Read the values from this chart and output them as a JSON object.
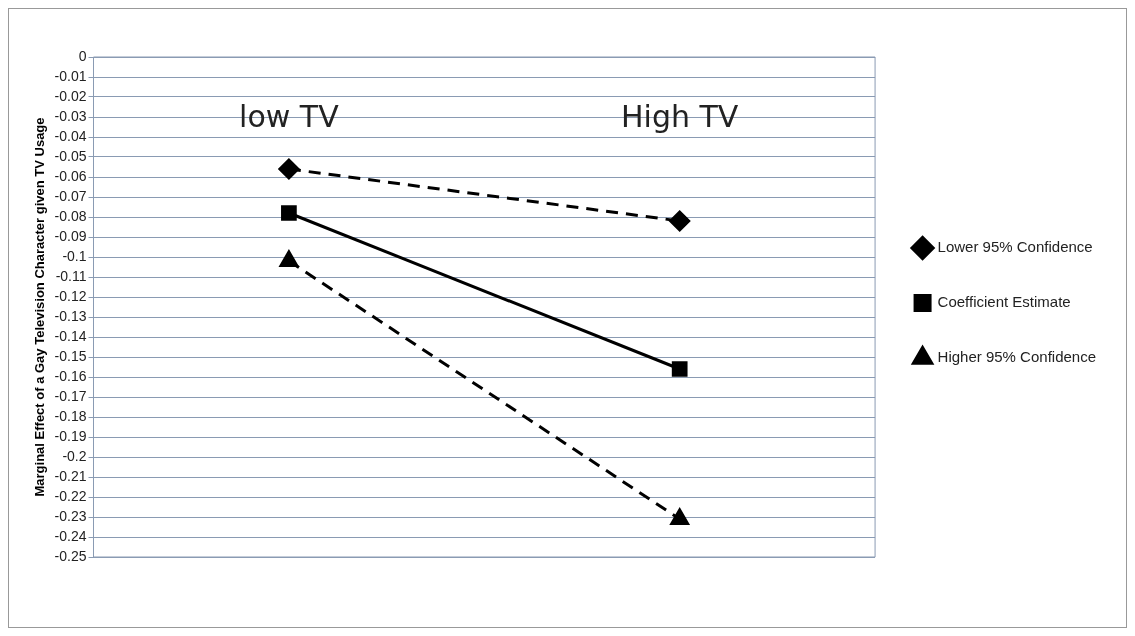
{
  "chart_data": {
    "type": "line",
    "ylabel": "Marginal Effect of a Gay Television Character given TV Usage",
    "categories": [
      "low TV",
      "High TV"
    ],
    "series": [
      {
        "name": "Lower 95% Confidence",
        "color": "#000000",
        "values": [
          -0.056,
          -0.082
        ],
        "marker": "diamond",
        "line_style": "dashed"
      },
      {
        "name": "Coefficient Estimate",
        "color": "#000000",
        "values": [
          -0.078,
          -0.156
        ],
        "marker": "square",
        "line_style": "solid"
      },
      {
        "name": "Higher 95% Confidence",
        "color": "#000000",
        "values": [
          -0.102,
          -0.231
        ],
        "marker": "triangle",
        "line_style": "dashed"
      }
    ],
    "ylim": [
      -0.25,
      0
    ],
    "yticks": [
      0,
      -0.01,
      -0.02,
      -0.03,
      -0.04,
      -0.05,
      -0.06,
      -0.07,
      -0.08,
      -0.09,
      -0.1,
      -0.11,
      -0.12,
      -0.13,
      -0.14,
      -0.15,
      -0.16,
      -0.17,
      -0.18,
      -0.19,
      -0.2,
      -0.21,
      -0.22,
      -0.23,
      -0.24,
      -0.25
    ],
    "grid": "y",
    "legend": "right"
  }
}
